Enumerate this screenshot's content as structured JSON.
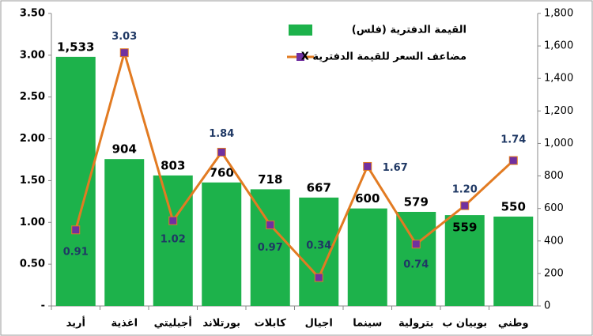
{
  "chart_data": {
    "type": "bar_line",
    "categories": [
      "أريد",
      "اغذية",
      "أجيليتي",
      "بورتلاند",
      "كابلات",
      "اجيال",
      "سينما",
      "بترولية",
      "بوبيان ب",
      "وطني"
    ],
    "series": [
      {
        "name": "القيمة الدفترية (فلس)",
        "type": "bar",
        "axis": "y2",
        "color": "#1db24b",
        "values": [
          1533,
          904,
          803,
          760,
          718,
          667,
          600,
          579,
          559,
          550
        ],
        "value_labels": [
          "1,533",
          "904",
          "803",
          "760",
          "718",
          "667",
          "600",
          "579",
          "559",
          "550"
        ]
      },
      {
        "name": "مضاعف السعر للقيمة الدفترية X",
        "type": "line",
        "axis": "y",
        "color": "#e27b22",
        "marker_color": "#7030a0",
        "values": [
          0.91,
          3.03,
          1.02,
          1.84,
          0.97,
          0.34,
          1.67,
          0.74,
          1.2,
          1.74
        ],
        "value_labels": [
          "0.91",
          "3.03",
          "1.02",
          "1.84",
          "0.97",
          "0.34",
          "1.67",
          "0.74",
          "1.20",
          "1.74"
        ]
      }
    ],
    "ylim": [
      0,
      3.5
    ],
    "yticks": [
      {
        "value": 0,
        "label": "-"
      },
      {
        "value": 0.5,
        "label": "0.50"
      },
      {
        "value": 1,
        "label": "1.00"
      },
      {
        "value": 1.5,
        "label": "1.50"
      },
      {
        "value": 2,
        "label": "2.00"
      },
      {
        "value": 2.5,
        "label": "2.50"
      },
      {
        "value": 3,
        "label": "3.00"
      },
      {
        "value": 3.5,
        "label": "3.50"
      }
    ],
    "y2lim": [
      0,
      1800
    ],
    "y2ticks": [
      0,
      200,
      400,
      600,
      800,
      {
        "value": 1000,
        "label": "1,000"
      },
      {
        "value": 1200,
        "label": "1,200"
      },
      {
        "value": 1400,
        "label": "1,400"
      },
      {
        "value": 1600,
        "label": "1,600"
      },
      {
        "value": 1800,
        "label": "1,800"
      }
    ],
    "legend": "top-right"
  }
}
